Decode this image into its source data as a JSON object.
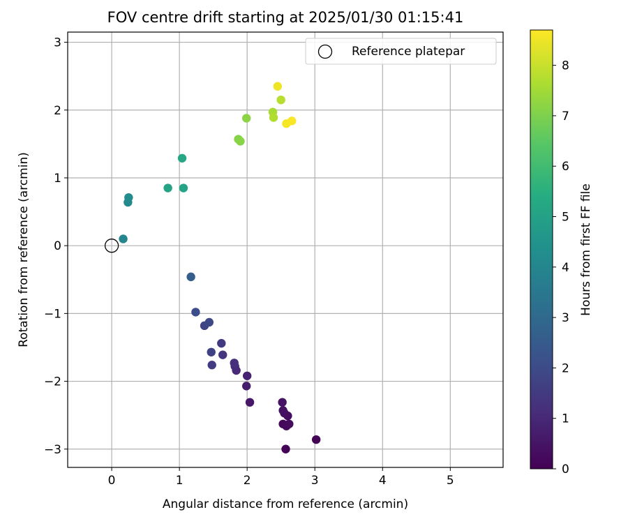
{
  "chart_data": {
    "type": "scatter",
    "title": "FOV centre drift starting at 2025/01/30 01:15:41",
    "xlabel": "Angular distance from reference (arcmin)",
    "ylabel": "Rotation from reference (arcmin)",
    "xlim": [
      -0.65,
      5.78
    ],
    "ylim": [
      -3.27,
      3.15
    ],
    "xticks": [
      0,
      1,
      2,
      3,
      4,
      5
    ],
    "yticks": [
      -3,
      -2,
      -1,
      0,
      1,
      2,
      3
    ],
    "grid": true,
    "legend_position": "top-right",
    "reference": {
      "label": "Reference platepar",
      "x": 0,
      "y": 0
    },
    "colorbar": {
      "label": "Hours from first FF file",
      "min": 0,
      "max": 8.7,
      "ticks": [
        0,
        1,
        2,
        3,
        4,
        5,
        6,
        7,
        8
      ],
      "colormap": "viridis"
    },
    "points": [
      {
        "x": 2.57,
        "y": -3.0,
        "t": 0.05
      },
      {
        "x": 3.02,
        "y": -2.86,
        "t": 0.1
      },
      {
        "x": 2.53,
        "y": -2.63,
        "t": 0.15
      },
      {
        "x": 2.58,
        "y": -2.66,
        "t": 0.2
      },
      {
        "x": 2.62,
        "y": -2.63,
        "t": 0.25
      },
      {
        "x": 2.6,
        "y": -2.51,
        "t": 0.3
      },
      {
        "x": 2.55,
        "y": -2.47,
        "t": 0.35
      },
      {
        "x": 2.53,
        "y": -2.43,
        "t": 0.4
      },
      {
        "x": 2.52,
        "y": -2.31,
        "t": 0.45
      },
      {
        "x": 2.04,
        "y": -2.31,
        "t": 0.55
      },
      {
        "x": 1.99,
        "y": -2.07,
        "t": 0.7
      },
      {
        "x": 2.0,
        "y": -1.92,
        "t": 0.85
      },
      {
        "x": 1.84,
        "y": -1.84,
        "t": 1.0
      },
      {
        "x": 1.82,
        "y": -1.78,
        "t": 1.1
      },
      {
        "x": 1.81,
        "y": -1.73,
        "t": 1.2
      },
      {
        "x": 1.64,
        "y": -1.61,
        "t": 1.35
      },
      {
        "x": 1.62,
        "y": -1.44,
        "t": 1.5
      },
      {
        "x": 1.48,
        "y": -1.76,
        "t": 1.55
      },
      {
        "x": 1.47,
        "y": -1.57,
        "t": 1.7
      },
      {
        "x": 1.37,
        "y": -1.18,
        "t": 1.8
      },
      {
        "x": 1.44,
        "y": -1.13,
        "t": 1.95
      },
      {
        "x": 1.24,
        "y": -0.98,
        "t": 2.1
      },
      {
        "x": 1.17,
        "y": -0.46,
        "t": 2.6
      },
      {
        "x": 0.17,
        "y": 0.1,
        "t": 4.0
      },
      {
        "x": 0.24,
        "y": 0.64,
        "t": 4.1
      },
      {
        "x": 0.25,
        "y": 0.71,
        "t": 4.2
      },
      {
        "x": 0.83,
        "y": 0.85,
        "t": 5.05
      },
      {
        "x": 1.06,
        "y": 0.85,
        "t": 5.1
      },
      {
        "x": 1.04,
        "y": 1.29,
        "t": 5.2
      },
      {
        "x": 1.87,
        "y": 1.57,
        "t": 7.1
      },
      {
        "x": 1.9,
        "y": 1.54,
        "t": 7.15
      },
      {
        "x": 1.99,
        "y": 1.88,
        "t": 7.2
      },
      {
        "x": 2.38,
        "y": 1.97,
        "t": 7.6
      },
      {
        "x": 2.39,
        "y": 1.89,
        "t": 7.7
      },
      {
        "x": 2.5,
        "y": 2.15,
        "t": 7.8
      },
      {
        "x": 2.45,
        "y": 2.35,
        "t": 8.5
      },
      {
        "x": 2.58,
        "y": 1.8,
        "t": 8.6
      },
      {
        "x": 2.66,
        "y": 1.84,
        "t": 8.65
      }
    ]
  }
}
